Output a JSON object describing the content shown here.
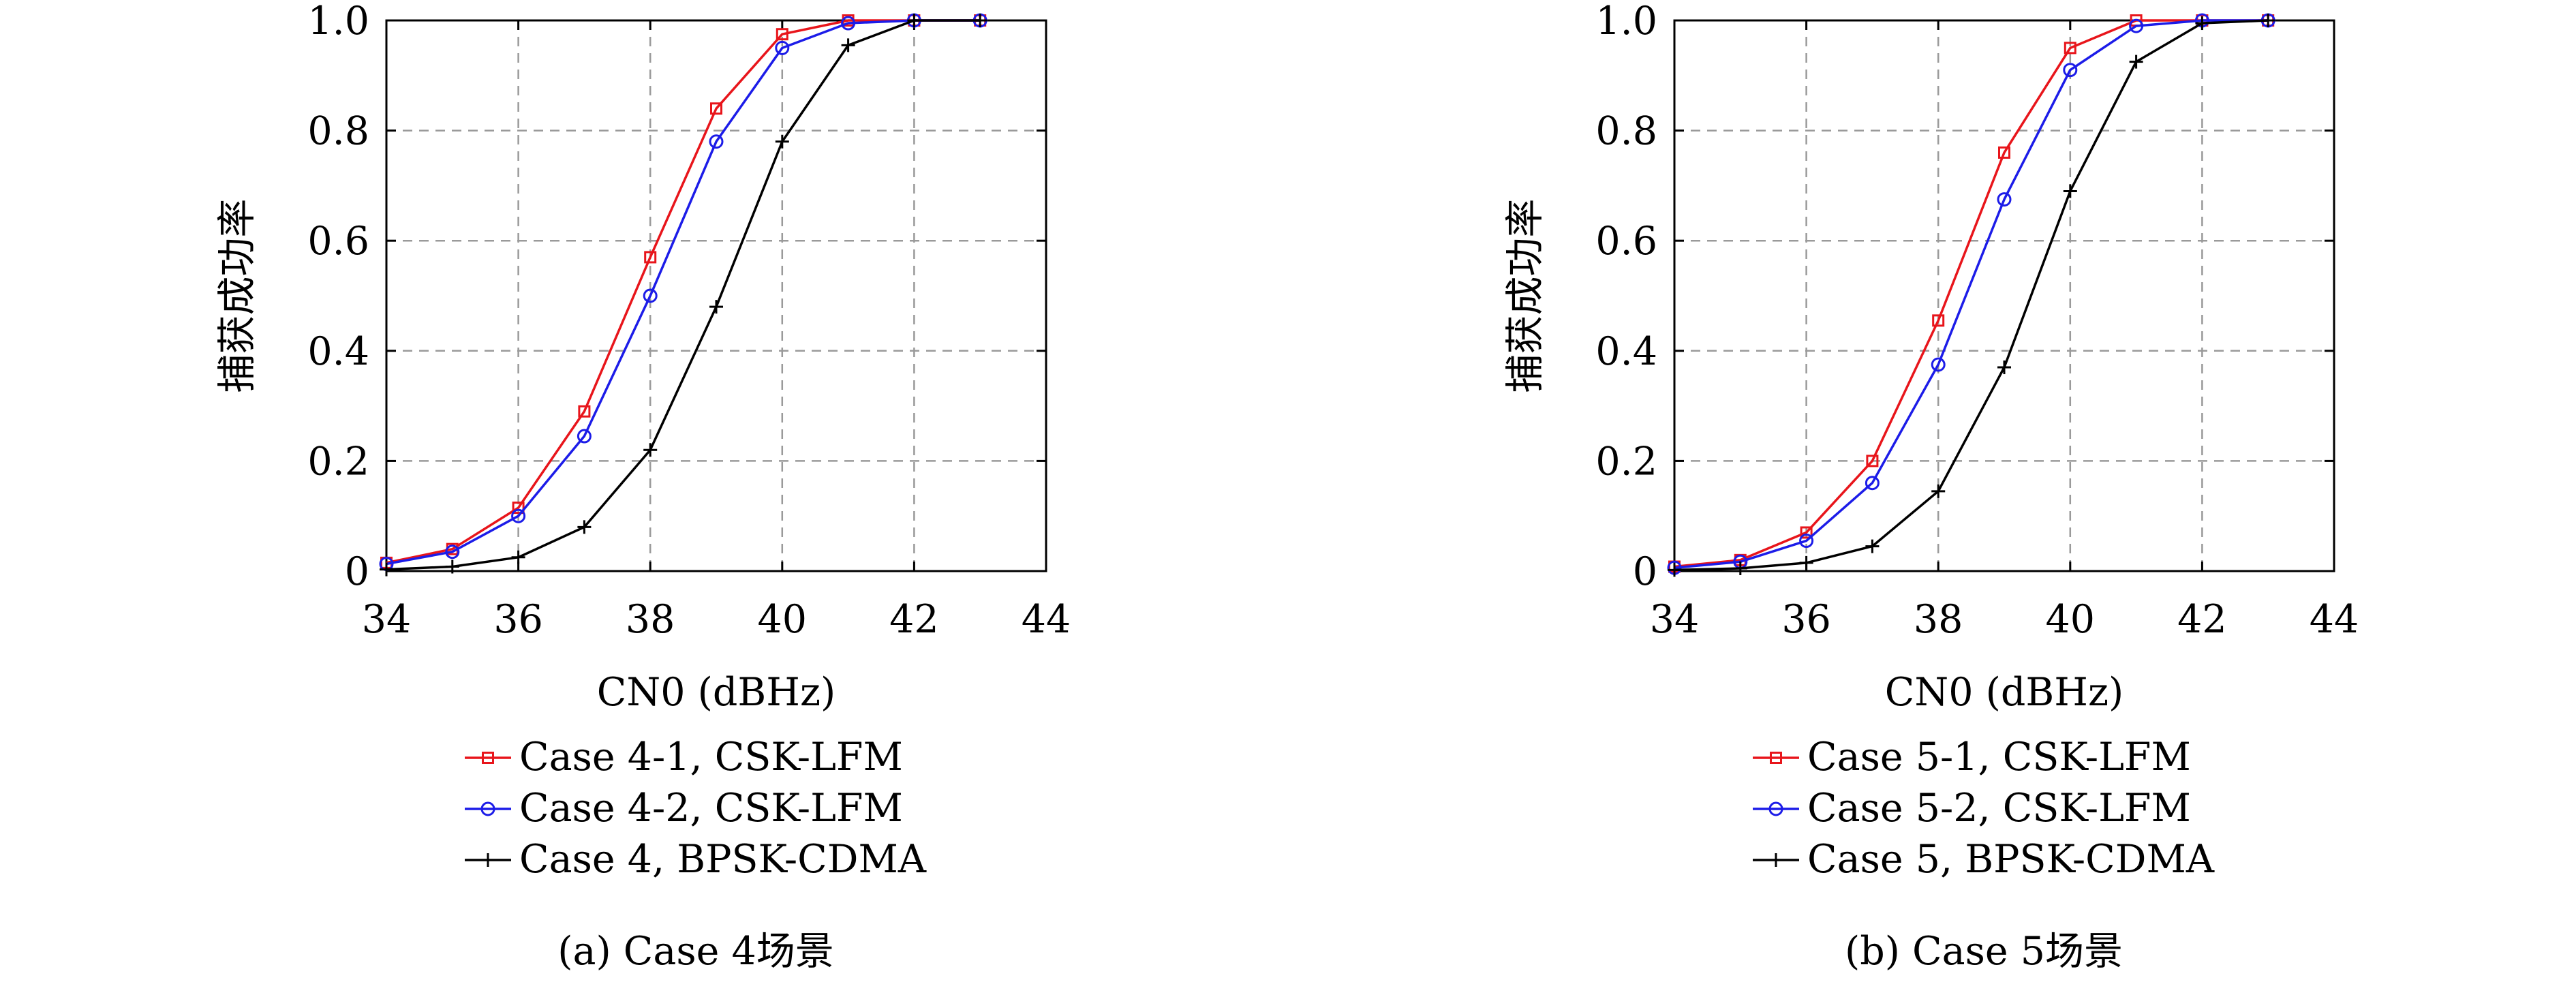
{
  "chart_data": [
    {
      "type": "line",
      "caption": "(a) Case 4场景",
      "xlabel": "CN0 (dBHz)",
      "ylabel": "捕获成功率",
      "xlim": [
        34,
        44
      ],
      "ylim": [
        0,
        1
      ],
      "xticks": [
        "34",
        "36",
        "38",
        "40",
        "42",
        "44"
      ],
      "yticks": [
        "0",
        "0.2",
        "0.4",
        "0.6",
        "0.8",
        "1.0"
      ],
      "grid": true,
      "legend_position": "below",
      "x": [
        34,
        35,
        36,
        37,
        38,
        39,
        40,
        41,
        42,
        43
      ],
      "series": [
        {
          "name": "Case 4-1, CSK-LFM",
          "color": "#e8151b",
          "marker": "square",
          "values": [
            0.015,
            0.04,
            0.115,
            0.29,
            0.57,
            0.84,
            0.975,
            1.0,
            1.0,
            1.0
          ]
        },
        {
          "name": "Case 4-2, CSK-LFM",
          "color": "#1c1ce8",
          "marker": "circle",
          "values": [
            0.013,
            0.035,
            0.1,
            0.245,
            0.5,
            0.78,
            0.95,
            0.995,
            1.0,
            1.0
          ]
        },
        {
          "name": "Case 4, BPSK-CDMA",
          "color": "#000000",
          "marker": "plus",
          "values": [
            0.003,
            0.008,
            0.025,
            0.08,
            0.22,
            0.48,
            0.78,
            0.955,
            1.0,
            1.0
          ]
        }
      ]
    },
    {
      "type": "line",
      "caption": "(b) Case 5场景",
      "xlabel": "CN0 (dBHz)",
      "ylabel": "捕获成功率",
      "xlim": [
        34,
        44
      ],
      "ylim": [
        0,
        1
      ],
      "xticks": [
        "34",
        "36",
        "38",
        "40",
        "42",
        "44"
      ],
      "yticks": [
        "0",
        "0.2",
        "0.4",
        "0.6",
        "0.8",
        "1.0"
      ],
      "grid": true,
      "legend_position": "below",
      "x": [
        34,
        35,
        36,
        37,
        38,
        39,
        40,
        41,
        42,
        43
      ],
      "series": [
        {
          "name": "Case 5-1, CSK-LFM",
          "color": "#e8151b",
          "marker": "square",
          "values": [
            0.008,
            0.02,
            0.07,
            0.2,
            0.455,
            0.76,
            0.95,
            1.0,
            1.0,
            1.0
          ]
        },
        {
          "name": "Case 5-2, CSK-LFM",
          "color": "#1c1ce8",
          "marker": "circle",
          "values": [
            0.006,
            0.017,
            0.055,
            0.16,
            0.375,
            0.675,
            0.91,
            0.99,
            1.0,
            1.0
          ]
        },
        {
          "name": "Case 5, BPSK-CDMA",
          "color": "#000000",
          "marker": "plus",
          "values": [
            0.002,
            0.005,
            0.015,
            0.045,
            0.145,
            0.37,
            0.69,
            0.925,
            0.995,
            1.0
          ]
        }
      ]
    }
  ]
}
